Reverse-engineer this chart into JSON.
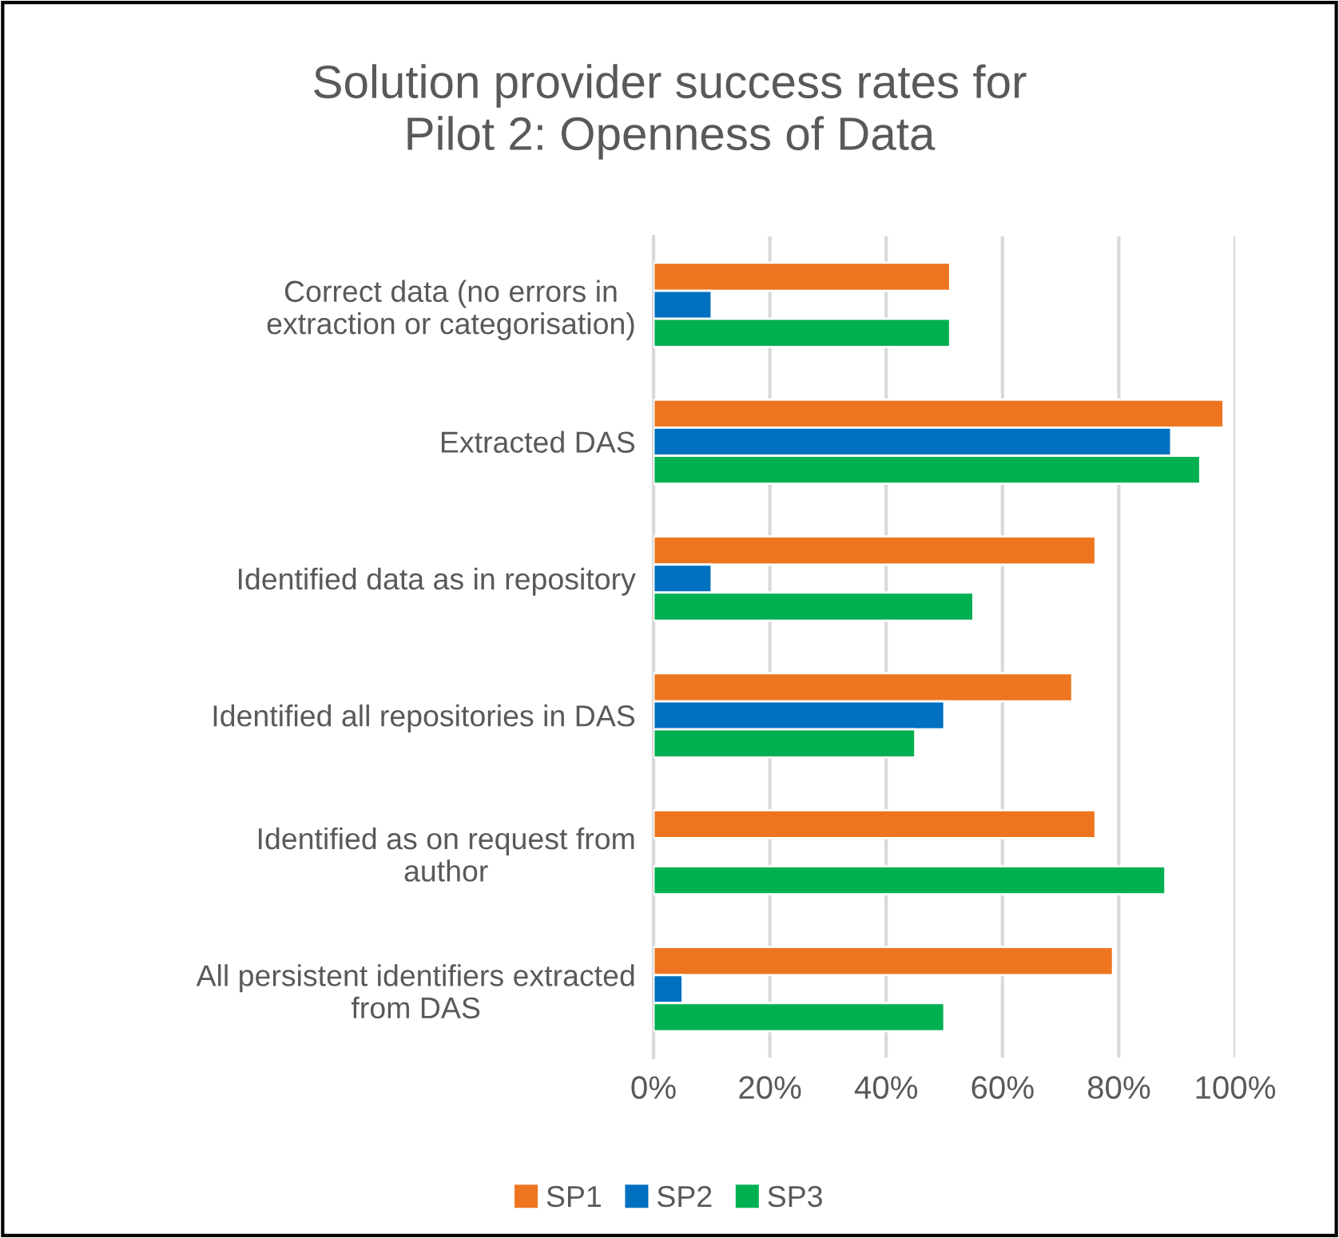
{
  "chart_data": {
    "type": "bar",
    "orientation": "horizontal",
    "title": "Solution provider success rates for\nPilot 2: Openness of Data",
    "categories": [
      "Correct data (no errors in\nextraction or categorisation)",
      "Extracted DAS",
      "Identified data as in repository",
      "Identified all repositories in DAS",
      "Identified as on request from\nauthor",
      "All persistent identifiers extracted\nfrom DAS"
    ],
    "series": [
      {
        "name": "SP1",
        "color": "#ed7520",
        "values": [
          51,
          98,
          76,
          72,
          76,
          79
        ]
      },
      {
        "name": "SP2",
        "color": "#0070c0",
        "values": [
          10,
          89,
          10,
          50,
          null,
          5
        ]
      },
      {
        "name": "SP3",
        "color": "#00b050",
        "values": [
          51,
          94,
          55,
          45,
          88,
          50
        ]
      }
    ],
    "xlim": [
      0,
      100
    ],
    "xticks": [
      {
        "value": 0,
        "label": "0%"
      },
      {
        "value": 20,
        "label": "20%"
      },
      {
        "value": 40,
        "label": "40%"
      },
      {
        "value": 60,
        "label": "60%"
      },
      {
        "value": 80,
        "label": "80%"
      },
      {
        "value": 100,
        "label": "100%"
      }
    ],
    "grid": "x",
    "legend": "bottom"
  }
}
